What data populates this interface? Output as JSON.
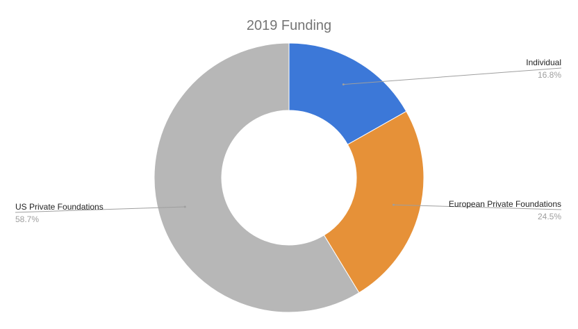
{
  "chart_data": {
    "type": "pie",
    "variant": "donut",
    "title": "2019 Funding",
    "slices": [
      {
        "name": "Individual",
        "value": 16.8,
        "label": "16.8%",
        "color": "#3c78d8"
      },
      {
        "name": "European Private Foundations",
        "value": 24.5,
        "label": "24.5%",
        "color": "#e69138"
      },
      {
        "name": "US Private Foundations",
        "value": 58.7,
        "label": "58.7%",
        "color": "#b7b7b7"
      }
    ],
    "start_angle": "12 o'clock",
    "direction": "clockwise",
    "legend": "none"
  }
}
